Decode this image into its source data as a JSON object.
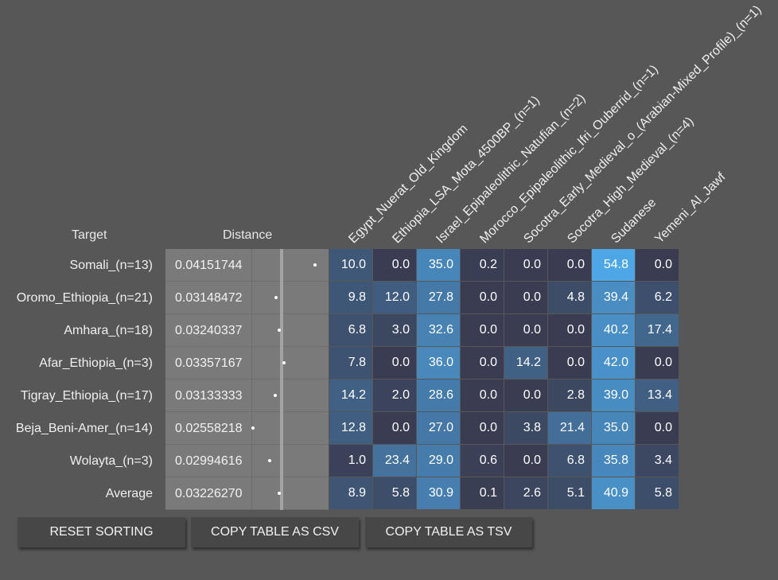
{
  "header": {
    "target_label": "Target",
    "distance_label": "Distance"
  },
  "columns": [
    "Egypt_Nuerat_Old_Kingdom",
    "Ethiopia_LSA_Mota_4500BP_(n=1)",
    "Israel_Epipaleolithic_Natufian_(n=2)",
    "Morocco_Epipaleolithic_Ifri_Ouberrid_(n=1)",
    "Socotra_Early_Medieval_o_(Arabian-Mixed_Profile)_(n=1)",
    "Socotra_High_Medieval_(n=4)",
    "Sudanese",
    "Yemeni_Al_Jawf"
  ],
  "rows": [
    {
      "target": "Somali_(n=13)",
      "distance": "0.04151744",
      "values": [
        "10.0",
        "0.0",
        "35.0",
        "0.2",
        "0.0",
        "0.0",
        "54.8",
        "0.0"
      ]
    },
    {
      "target": "Oromo_Ethiopia_(n=21)",
      "distance": "0.03148472",
      "values": [
        "9.8",
        "12.0",
        "27.8",
        "0.0",
        "0.0",
        "4.8",
        "39.4",
        "6.2"
      ]
    },
    {
      "target": "Amhara_(n=18)",
      "distance": "0.03240337",
      "values": [
        "6.8",
        "3.0",
        "32.6",
        "0.0",
        "0.0",
        "0.0",
        "40.2",
        "17.4"
      ]
    },
    {
      "target": "Afar_Ethiopia_(n=3)",
      "distance": "0.03357167",
      "values": [
        "7.8",
        "0.0",
        "36.0",
        "0.0",
        "14.2",
        "0.0",
        "42.0",
        "0.0"
      ]
    },
    {
      "target": "Tigray_Ethiopia_(n=17)",
      "distance": "0.03133333",
      "values": [
        "14.2",
        "2.0",
        "28.6",
        "0.0",
        "0.0",
        "2.8",
        "39.0",
        "13.4"
      ]
    },
    {
      "target": "Beja_Beni-Amer_(n=14)",
      "distance": "0.02558218",
      "values": [
        "12.8",
        "0.0",
        "27.0",
        "0.0",
        "3.8",
        "21.4",
        "35.0",
        "0.0"
      ]
    },
    {
      "target": "Wolayta_(n=3)",
      "distance": "0.02994616",
      "values": [
        "1.0",
        "23.4",
        "29.0",
        "0.6",
        "0.0",
        "6.8",
        "35.8",
        "3.4"
      ]
    },
    {
      "target": "Average",
      "distance": "0.03226270",
      "values": [
        "8.9",
        "5.8",
        "30.9",
        "0.1",
        "2.6",
        "5.1",
        "40.9",
        "5.8"
      ]
    }
  ],
  "buttons": {
    "reset_sorting": "RESET SORTING",
    "copy_csv": "COPY TABLE AS CSV",
    "copy_tsv": "COPY TABLE AS TSV"
  },
  "colors": {
    "background": "#575757",
    "distance_bg": "#7a7a7a",
    "heat_low": "#3a3d52",
    "heat_high": "#4da6e6",
    "button_bg": "#474747"
  }
}
